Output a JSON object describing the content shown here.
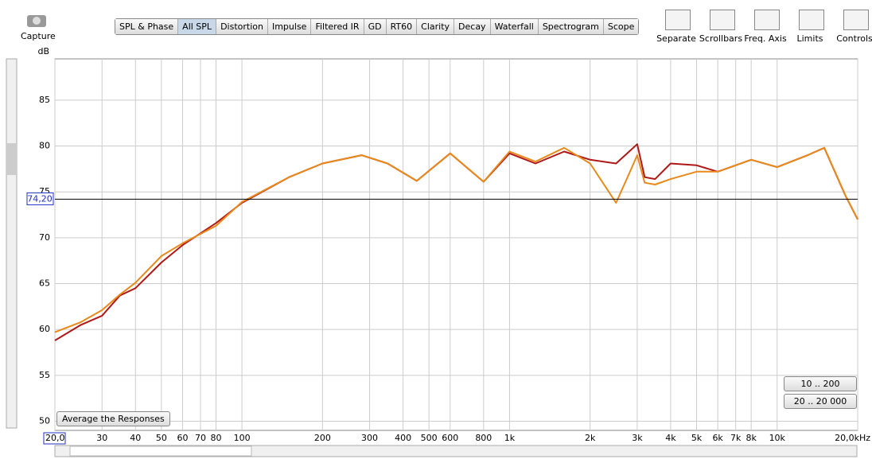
{
  "capture": "Capture",
  "toolbar": {
    "tabs": [
      "SPL & Phase",
      "All SPL",
      "Distortion",
      "Impulse",
      "Filtered IR",
      "GD",
      "RT60",
      "Clarity",
      "Decay",
      "Waterfall",
      "Spectrogram",
      "Scope"
    ],
    "tools": [
      "Separate",
      "Scrollbars",
      "Freq. Axis",
      "Limits",
      "Controls"
    ]
  },
  "buttons": {
    "average": "Average the Responses",
    "range_a": "10 .. 200",
    "range_b": "20 .. 20 000"
  },
  "chart_data": {
    "type": "line",
    "y_label": "dB",
    "log_x": true,
    "grid": true,
    "xlim": [
      20,
      20000
    ],
    "ylim": [
      49,
      89.5
    ],
    "xticks": [
      {
        "value": 20,
        "label": "20,0"
      },
      30,
      40,
      50,
      60,
      70,
      80,
      100,
      200,
      300,
      400,
      500,
      600,
      800,
      {
        "value": 1000,
        "label": "1k"
      },
      {
        "value": 2000,
        "label": "2k"
      },
      {
        "value": 3000,
        "label": "3k"
      },
      {
        "value": 4000,
        "label": "4k"
      },
      {
        "value": 5000,
        "label": "5k"
      },
      {
        "value": 6000,
        "label": "6k"
      },
      {
        "value": 7000,
        "label": "7k"
      },
      {
        "value": 8000,
        "label": "8k"
      },
      {
        "value": 10000,
        "label": "10k"
      },
      {
        "value": 20000,
        "label": "20,0kHz"
      }
    ],
    "yticks": [
      50,
      55,
      60,
      65,
      70,
      75,
      80,
      85
    ],
    "cursor": {
      "value": 74.2,
      "label": "74,20"
    },
    "x": [
      20,
      25,
      30,
      35,
      40,
      50,
      60,
      80,
      100,
      150,
      200,
      280,
      350,
      450,
      600,
      800,
      1000,
      1250,
      1600,
      2000,
      2500,
      2800,
      3000,
      3200,
      3500,
      4000,
      5000,
      6000,
      8000,
      10000,
      13000,
      15000,
      18000,
      20000
    ],
    "series": [
      {
        "color": "#b01818",
        "values": [
          58.8,
          60.5,
          61.5,
          63.7,
          64.5,
          67.3,
          69.2,
          71.6,
          73.8,
          76.6,
          78.1,
          79.0,
          78.1,
          76.2,
          79.2,
          76.1,
          79.2,
          78.1,
          79.4,
          78.5,
          78.1,
          79.4,
          80.2,
          76.6,
          76.4,
          78.1,
          77.9,
          77.2,
          78.5,
          77.7,
          79.0,
          79.8,
          74.6,
          72.0
        ]
      },
      {
        "color": "#e8891a",
        "values": [
          59.7,
          60.8,
          62.1,
          63.8,
          65.1,
          68.0,
          69.4,
          71.3,
          73.9,
          76.6,
          78.1,
          79.0,
          78.1,
          76.2,
          79.2,
          76.1,
          79.4,
          78.3,
          79.8,
          78.1,
          73.8,
          77.0,
          79.0,
          76.0,
          75.8,
          76.4,
          77.2,
          77.2,
          78.5,
          77.7,
          79.0,
          79.8,
          74.6,
          72.0
        ]
      }
    ]
  }
}
